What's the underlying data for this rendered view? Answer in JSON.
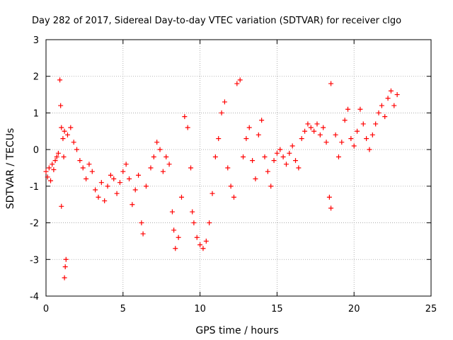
{
  "chart_data": {
    "type": "scatter",
    "title": "Day 282 of 2017, Sidereal Day-to-day VTEC variation (SDTVAR) for receiver clgo",
    "xlabel": "GPS time / hours",
    "ylabel": "SDTVAR / TECUs",
    "xlim": [
      0,
      25
    ],
    "ylim": [
      -4,
      3
    ],
    "xticks": [
      0,
      5,
      10,
      15,
      20,
      25
    ],
    "yticks": [
      -4,
      -3,
      -2,
      -1,
      0,
      1,
      2,
      3
    ],
    "grid": true,
    "marker": "+",
    "color": "#ff0000",
    "series": [
      {
        "name": "SDTVAR",
        "points": [
          [
            0.0,
            -0.6
          ],
          [
            0.1,
            -0.75
          ],
          [
            0.2,
            -0.5
          ],
          [
            0.3,
            -0.85
          ],
          [
            0.4,
            -0.4
          ],
          [
            0.5,
            -0.55
          ],
          [
            0.6,
            -0.3
          ],
          [
            0.7,
            -0.2
          ],
          [
            0.8,
            -0.1
          ],
          [
            0.9,
            1.9
          ],
          [
            0.95,
            1.2
          ],
          [
            1.0,
            0.6
          ],
          [
            1.0,
            -1.55
          ],
          [
            1.1,
            0.3
          ],
          [
            1.15,
            -0.2
          ],
          [
            1.2,
            -3.5
          ],
          [
            1.25,
            -3.2
          ],
          [
            1.3,
            -3.0
          ],
          [
            1.2,
            0.5
          ],
          [
            1.4,
            0.4
          ],
          [
            1.6,
            0.6
          ],
          [
            1.8,
            0.2
          ],
          [
            2.0,
            0.0
          ],
          [
            2.2,
            -0.3
          ],
          [
            2.4,
            -0.5
          ],
          [
            2.6,
            -0.8
          ],
          [
            2.8,
            -0.4
          ],
          [
            3.0,
            -0.6
          ],
          [
            3.2,
            -1.1
          ],
          [
            3.4,
            -1.3
          ],
          [
            3.6,
            -0.9
          ],
          [
            3.8,
            -1.4
          ],
          [
            4.0,
            -1.0
          ],
          [
            4.2,
            -0.7
          ],
          [
            4.4,
            -0.8
          ],
          [
            4.6,
            -1.2
          ],
          [
            4.8,
            -0.9
          ],
          [
            5.0,
            -0.6
          ],
          [
            5.2,
            -0.4
          ],
          [
            5.4,
            -0.8
          ],
          [
            5.6,
            -1.5
          ],
          [
            5.8,
            -1.1
          ],
          [
            6.0,
            -0.7
          ],
          [
            6.2,
            -2.0
          ],
          [
            6.3,
            -2.3
          ],
          [
            6.5,
            -1.0
          ],
          [
            6.8,
            -0.5
          ],
          [
            7.0,
            -0.2
          ],
          [
            7.2,
            0.2
          ],
          [
            7.4,
            0.0
          ],
          [
            7.6,
            -0.6
          ],
          [
            7.8,
            -0.2
          ],
          [
            8.0,
            -0.4
          ],
          [
            8.2,
            -1.7
          ],
          [
            8.3,
            -2.2
          ],
          [
            8.4,
            -2.7
          ],
          [
            8.6,
            -2.4
          ],
          [
            8.8,
            -1.3
          ],
          [
            9.0,
            0.9
          ],
          [
            9.2,
            0.6
          ],
          [
            9.4,
            -0.5
          ],
          [
            9.5,
            -1.7
          ],
          [
            9.6,
            -2.0
          ],
          [
            9.8,
            -2.4
          ],
          [
            10.0,
            -2.6
          ],
          [
            10.2,
            -2.7
          ],
          [
            10.4,
            -2.5
          ],
          [
            10.6,
            -2.0
          ],
          [
            10.8,
            -1.2
          ],
          [
            11.0,
            -0.2
          ],
          [
            11.2,
            0.3
          ],
          [
            11.4,
            1.0
          ],
          [
            11.6,
            1.3
          ],
          [
            11.8,
            -0.5
          ],
          [
            12.0,
            -1.0
          ],
          [
            12.2,
            -1.3
          ],
          [
            12.4,
            1.8
          ],
          [
            12.6,
            1.9
          ],
          [
            12.8,
            -0.2
          ],
          [
            13.0,
            0.3
          ],
          [
            13.2,
            0.6
          ],
          [
            13.4,
            -0.3
          ],
          [
            13.6,
            -0.8
          ],
          [
            13.8,
            0.4
          ],
          [
            14.0,
            0.8
          ],
          [
            14.2,
            -0.2
          ],
          [
            14.4,
            -0.6
          ],
          [
            14.6,
            -1.0
          ],
          [
            14.8,
            -0.3
          ],
          [
            15.0,
            -0.1
          ],
          [
            15.2,
            0.0
          ],
          [
            15.4,
            -0.2
          ],
          [
            15.6,
            -0.4
          ],
          [
            15.8,
            -0.1
          ],
          [
            16.0,
            0.1
          ],
          [
            16.2,
            -0.3
          ],
          [
            16.4,
            -0.5
          ],
          [
            16.6,
            0.3
          ],
          [
            16.8,
            0.5
          ],
          [
            17.0,
            0.7
          ],
          [
            17.2,
            0.6
          ],
          [
            17.4,
            0.5
          ],
          [
            17.6,
            0.7
          ],
          [
            17.8,
            0.4
          ],
          [
            18.0,
            0.6
          ],
          [
            18.2,
            0.2
          ],
          [
            18.4,
            -1.3
          ],
          [
            18.5,
            -1.6
          ],
          [
            18.5,
            1.8
          ],
          [
            18.8,
            0.4
          ],
          [
            19.0,
            -0.2
          ],
          [
            19.2,
            0.2
          ],
          [
            19.4,
            0.8
          ],
          [
            19.6,
            1.1
          ],
          [
            19.8,
            0.3
          ],
          [
            20.0,
            0.1
          ],
          [
            20.2,
            0.5
          ],
          [
            20.4,
            1.1
          ],
          [
            20.6,
            0.7
          ],
          [
            20.8,
            0.3
          ],
          [
            21.0,
            0.0
          ],
          [
            21.2,
            0.4
          ],
          [
            21.4,
            0.7
          ],
          [
            21.6,
            1.0
          ],
          [
            21.8,
            1.2
          ],
          [
            22.0,
            0.9
          ],
          [
            22.2,
            1.4
          ],
          [
            22.4,
            1.6
          ],
          [
            22.6,
            1.2
          ],
          [
            22.8,
            1.5
          ]
        ]
      }
    ]
  }
}
